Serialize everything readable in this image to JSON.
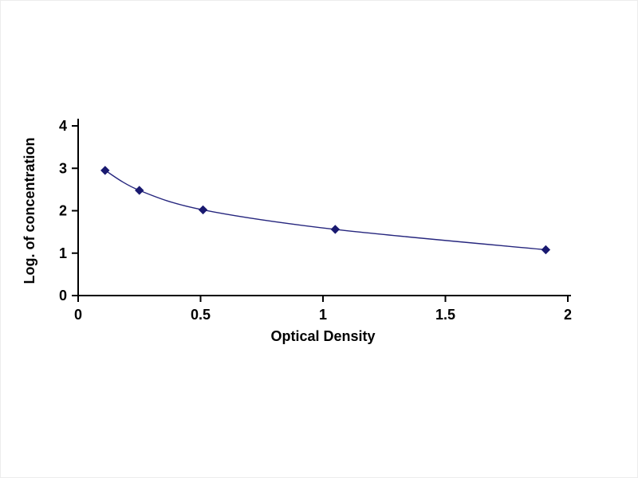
{
  "figure": {
    "background": "#ffffff",
    "border_color": "#ececec"
  },
  "chart_data": {
    "type": "line",
    "title": "",
    "xlabel": "Optical Density",
    "ylabel": "Log. of concentration",
    "x": [
      0.11,
      0.25,
      0.51,
      1.05,
      1.91
    ],
    "y": [
      2.95,
      2.48,
      2.02,
      1.56,
      1.08
    ],
    "xlim": [
      0,
      2
    ],
    "ylim": [
      0,
      4
    ],
    "xticks": {
      "values": [
        0,
        0.5,
        1,
        1.5,
        2
      ],
      "labels": [
        "0",
        "0.5",
        "1",
        "1.5",
        "2"
      ]
    },
    "yticks": {
      "values": [
        0,
        1,
        2,
        3,
        4
      ],
      "labels": [
        "0",
        "1",
        "2",
        "3",
        "4"
      ]
    },
    "grid": false,
    "legend": null,
    "marker": "diamond",
    "marker_size": 5,
    "colors": {
      "line": "#26267e",
      "marker": "#191970",
      "axis": "#000000",
      "text": "#000000"
    }
  }
}
